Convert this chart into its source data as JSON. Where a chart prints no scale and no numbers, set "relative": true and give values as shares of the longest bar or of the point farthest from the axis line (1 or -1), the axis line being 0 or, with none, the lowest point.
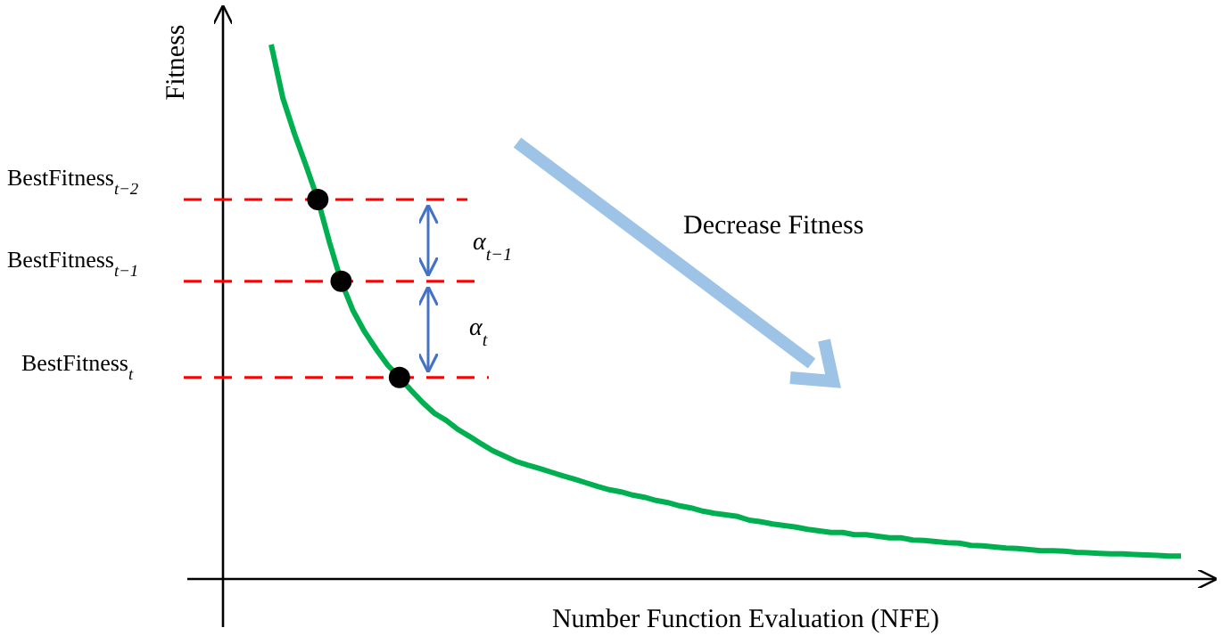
{
  "chart_data": {
    "type": "line",
    "relative": true,
    "xlabel": "Number Function Evaluation (NFE)",
    "ylabel": "Fitness",
    "categories": [
      null,
      null,
      null,
      null,
      null,
      null,
      null,
      null,
      null,
      null,
      null,
      null,
      null,
      null,
      null,
      null,
      null,
      null,
      null,
      null,
      null,
      null,
      null,
      null,
      null,
      null,
      null,
      null,
      null,
      null,
      null,
      null,
      null,
      null,
      null,
      null,
      null,
      null,
      null,
      null,
      null,
      null,
      null,
      null,
      null,
      null,
      null,
      null,
      null,
      null,
      null,
      null,
      null,
      null,
      null,
      null,
      null,
      null,
      null,
      null,
      null,
      null,
      null,
      null,
      null,
      null,
      null,
      null,
      null,
      null,
      null,
      null,
      null,
      null,
      null,
      null,
      null,
      null,
      null
    ],
    "series": [
      {
        "color": "#00b050",
        "marker": "none",
        "values": [
          1.0,
          0.9,
          0.833,
          0.773,
          0.71,
          0.63,
          0.557,
          0.503,
          0.463,
          0.43,
          0.4,
          0.377,
          0.353,
          0.33,
          0.31,
          0.297,
          0.28,
          0.267,
          0.253,
          0.24,
          0.23,
          0.22,
          0.213,
          0.207,
          0.2,
          0.193,
          0.187,
          0.18,
          0.173,
          0.167,
          0.163,
          0.157,
          0.153,
          0.147,
          0.143,
          0.137,
          0.133,
          0.127,
          0.123,
          0.12,
          0.117,
          0.11,
          0.107,
          0.103,
          0.1,
          0.097,
          0.093,
          0.09,
          0.087,
          0.087,
          0.083,
          0.083,
          0.08,
          0.077,
          0.077,
          0.073,
          0.072,
          0.07,
          0.068,
          0.067,
          0.063,
          0.062,
          0.06,
          0.058,
          0.057,
          0.055,
          0.053,
          0.053,
          0.052,
          0.05,
          0.049,
          0.048,
          0.047,
          0.047,
          0.046,
          0.045,
          0.044,
          0.043,
          0.043
        ]
      }
    ],
    "ref_lines": [
      {
        "axis": "y",
        "value": 0.71,
        "label": "BestFitness$_{t−2}$",
        "color": "#ff0000",
        "line_style": "dashed"
      },
      {
        "axis": "y",
        "value": 0.557,
        "label": "BestFitness$_{t−1}$",
        "color": "#ff0000",
        "line_style": "dashed"
      },
      {
        "axis": "y",
        "value": 0.377,
        "label": "BestFitness$_{t}$",
        "color": "#ff0000",
        "line_style": "dashed"
      }
    ],
    "annotations": [
      "α$_{t−1}$",
      "α$_{t}$",
      "Decrease Fitness"
    ]
  }
}
